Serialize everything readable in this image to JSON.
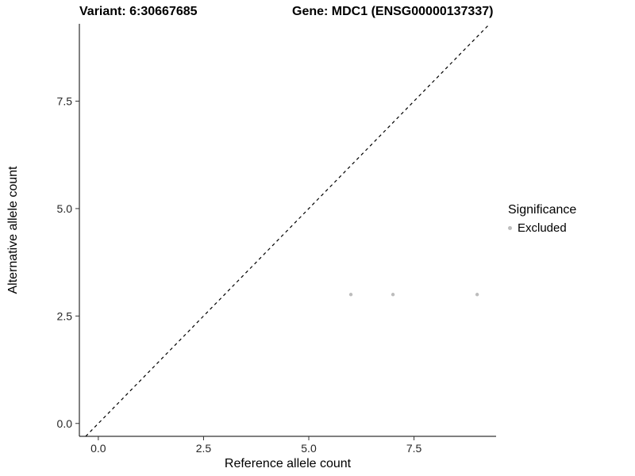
{
  "chart_data": {
    "type": "scatter",
    "title_left": "Variant: 6:30667685",
    "title_right": "Gene: MDC1 (ENSG00000137337)",
    "xlabel": "Reference allele count",
    "ylabel": "Alternative allele count",
    "xlim": [
      -0.45,
      9.45
    ],
    "ylim": [
      -0.3,
      9.3
    ],
    "xticks": [
      0.0,
      2.5,
      5.0,
      7.5
    ],
    "xtick_labels": [
      "0.0",
      "2.5",
      "5.0",
      "7.5"
    ],
    "yticks": [
      0.0,
      2.5,
      5.0,
      7.5
    ],
    "ytick_labels": [
      "0.0",
      "2.5",
      "5.0",
      "7.5"
    ],
    "grid": false,
    "panel_background": "#ffffff",
    "axis_color": "#000000",
    "tick_color": "#333333",
    "tick_label_color": "#262626",
    "identity_line": {
      "style": "dashed",
      "color": "#000000",
      "slope": 1,
      "intercept": 0
    },
    "series": [
      {
        "name": "Excluded",
        "color": "#bdbdbd",
        "point_radius": 2.2,
        "points": [
          {
            "x": 6,
            "y": 3
          },
          {
            "x": 7,
            "y": 3
          },
          {
            "x": 9,
            "y": 3
          }
        ]
      }
    ],
    "legend": {
      "title": "Significance",
      "position": "right",
      "entries": [
        {
          "label": "Excluded",
          "color": "#bdbdbd"
        }
      ]
    }
  }
}
